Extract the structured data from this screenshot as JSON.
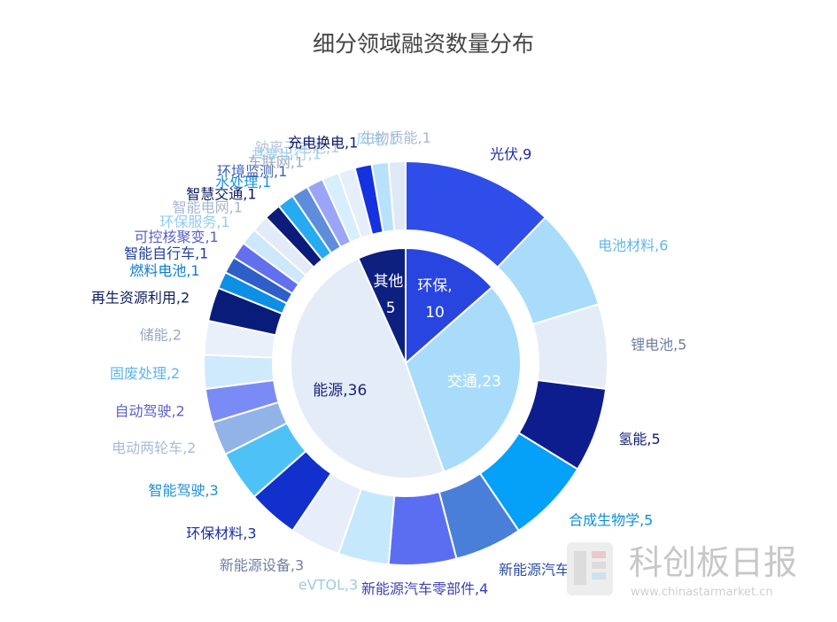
{
  "chart_data": {
    "type": "pie",
    "subtype": "nested-donut",
    "title": "细分领域融资数量分布",
    "inner": [
      {
        "label": "环保",
        "value": 10,
        "color": "#2945e0",
        "text": "环保,\n10"
      },
      {
        "label": "交通",
        "value": 23,
        "color": "#a9dcfa",
        "text": "交通,23"
      },
      {
        "label": "能源",
        "value": 36,
        "color": "#e4ecf8",
        "text": "能源,36"
      },
      {
        "label": "其他",
        "value": 5,
        "color": "#0d1f7f",
        "text": "其他,\n5"
      }
    ],
    "outer": [
      {
        "label": "光伏",
        "value": 9,
        "color": "#2f4de8",
        "text": "光伏,9",
        "tc": "#1e2a9c"
      },
      {
        "label": "电池材料",
        "value": 6,
        "color": "#a9dcfa",
        "text": "电池材料,6",
        "tc": "#62b6ea"
      },
      {
        "label": "锂电池",
        "value": 5,
        "color": "#e4ecf8",
        "text": "锂电池,5",
        "tc": "#6d7fa6"
      },
      {
        "label": "氢能",
        "value": 5,
        "color": "#0e1d8e",
        "text": "氢能,5",
        "tc": "#0d1b6e"
      },
      {
        "label": "合成生物学",
        "value": 5,
        "color": "#05a0f7",
        "text": "合成生物学,5",
        "tc": "#0c8fe0"
      },
      {
        "label": "新能源汽车",
        "value": 4,
        "color": "#4a7fd9",
        "text": "新能源汽车,4",
        "tc": "#2a4da0"
      },
      {
        "label": "新能源汽车零部件",
        "value": 4,
        "color": "#5b6ef2",
        "text": "新能源汽车零部件,4",
        "tc": "#3a3fb5"
      },
      {
        "label": "eVTOL",
        "value": 3,
        "color": "#c6e8fc",
        "text": "eVTOL,3",
        "tc": "#9ccbe8"
      },
      {
        "label": "新能源设备",
        "value": 3,
        "color": "#e7eef9",
        "text": "新能源设备,3",
        "tc": "#6d7fa6"
      },
      {
        "label": "环保材料",
        "value": 3,
        "color": "#1230cc",
        "text": "环保材料,3",
        "tc": "#1c2fa8"
      },
      {
        "label": "智能驾驶",
        "value": 3,
        "color": "#4ec2f7",
        "text": "智能驾驶,3",
        "tc": "#1e8fd6"
      },
      {
        "label": "电动两轮车",
        "value": 2,
        "color": "#92b3e8",
        "text": "电动两轮车,2",
        "tc": "#a8bbdc"
      },
      {
        "label": "自动驾驶",
        "value": 2,
        "color": "#7b8bf5",
        "text": "自动驾驶,2",
        "tc": "#5a5fc8"
      },
      {
        "label": "固废处理",
        "value": 2,
        "color": "#cfeafc",
        "text": "固废处理,2",
        "tc": "#5fb5ea"
      },
      {
        "label": "储能",
        "value": 2,
        "color": "#e9f0fa",
        "text": "储能,2",
        "tc": "#9aa8c4"
      },
      {
        "label": "再生资源利用",
        "value": 2,
        "color": "#0a1c7a",
        "text": "再生资源利用,2",
        "tc": "#0d1b5e"
      },
      {
        "label": "燃料电池",
        "value": 1,
        "color": "#0d8fe6",
        "text": "燃料电池,1",
        "tc": "#0c7ed6"
      },
      {
        "label": "智能自行车",
        "value": 1,
        "color": "#2e5fc8",
        "text": "智能自行车,1",
        "tc": "#1f3f9e"
      },
      {
        "label": "可控核聚变",
        "value": 1,
        "color": "#6270ee",
        "text": "可控核聚变,1",
        "tc": "#5a5fc8"
      },
      {
        "label": "环保服务",
        "value": 1,
        "color": "#cde7fb",
        "text": "环保服务,1",
        "tc": "#8fcdf2"
      },
      {
        "label": "智能电网",
        "value": 1,
        "color": "#e3ebf8",
        "text": "智能电网,1",
        "tc": "#a9b6d1"
      },
      {
        "label": "智慧交通",
        "value": 1,
        "color": "#0b1c7a",
        "text": "智慧交通,1",
        "tc": "#0d1b5e"
      },
      {
        "label": "水处理",
        "value": 1,
        "color": "#26aaf2",
        "text": "水处理,1",
        "tc": "#1b95e0"
      },
      {
        "label": "环境监测",
        "value": 1,
        "color": "#5e8ddb",
        "text": "环境监测,1",
        "tc": "#3e62b4"
      },
      {
        "label": "车联网",
        "value": 1,
        "color": "#9aa6f5",
        "text": "车联网,1",
        "tc": "#a0a9c2"
      },
      {
        "label": "共享出行",
        "value": 1,
        "color": "#d6eefd",
        "text": "共享出行,1",
        "tc": "#9cd2f0"
      },
      {
        "label": "钠离子电池",
        "value": 1,
        "color": "#e6eef9",
        "text": "钠离子电池,1",
        "tc": "#b8c4dc"
      },
      {
        "label": "充电换电",
        "value": 1,
        "color": "#1432e0",
        "text": "充电换电,1",
        "tc": "#0d1b6e"
      },
      {
        "label": "风电",
        "value": 1,
        "color": "#b8e2fb",
        "text": "风电,1",
        "tc": "#9ed3f4"
      },
      {
        "label": "生物质能",
        "value": 1,
        "color": "#dfe8f6",
        "text": "生物质能,1",
        "tc": "#aab8d4"
      }
    ]
  },
  "watermark": {
    "name": "科创板日报",
    "url": "www.chinastarmarket.cn"
  }
}
